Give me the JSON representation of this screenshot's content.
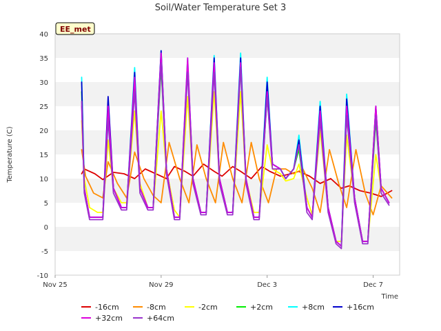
{
  "chart_data": {
    "type": "line",
    "title": "Soil/Water Temperature Set 3",
    "xlabel": "Time",
    "ylabel": "Temperature (C)",
    "badge": "EE_met",
    "ylim": [
      -10,
      40
    ],
    "yticks": [
      -10,
      -5,
      0,
      5,
      10,
      15,
      20,
      25,
      30,
      35,
      40
    ],
    "xlim": [
      0,
      13
    ],
    "xticks": [
      {
        "value": 0,
        "label": "Nov 25"
      },
      {
        "value": 4,
        "label": "Nov 29"
      },
      {
        "value": 8,
        "label": "Dec 3"
      },
      {
        "value": 12,
        "label": "Dec 7"
      }
    ],
    "x_day_units": "days since Nov 25 00:00",
    "grid": "horizontal bands",
    "legend": "bottom",
    "series": [
      {
        "name": "-16cm",
        "color": "#dd0000",
        "x": [
          1.0,
          1.1,
          1.5,
          1.8,
          2.2,
          2.6,
          3.0,
          3.4,
          3.8,
          4.2,
          4.5,
          4.9,
          5.2,
          5.6,
          6.0,
          6.3,
          6.7,
          7.0,
          7.4,
          7.8,
          8.1,
          8.5,
          8.9,
          9.2,
          9.6,
          10.0,
          10.4,
          10.8,
          11.1,
          11.5,
          11.9,
          12.3,
          12.7
        ],
        "y": [
          11,
          12,
          11,
          9.8,
          11.3,
          11,
          10,
          12,
          11,
          10,
          12.5,
          11.5,
          10.5,
          13,
          11.5,
          10.5,
          12.5,
          11.5,
          10,
          12.5,
          11.5,
          10.5,
          11,
          11.5,
          10.5,
          9,
          10,
          8,
          8.5,
          7.5,
          7,
          6.3,
          7.5
        ]
      },
      {
        "name": "-8cm",
        "color": "#ff8c00",
        "x": [
          1.0,
          1.15,
          1.45,
          1.8,
          2.0,
          2.35,
          2.7,
          3.0,
          3.35,
          3.7,
          4.0,
          4.3,
          4.7,
          5.05,
          5.35,
          5.7,
          6.05,
          6.35,
          6.7,
          7.05,
          7.4,
          7.7,
          8.05,
          8.35,
          8.7,
          9.0,
          9.35,
          9.7,
          10.0,
          10.35,
          10.7,
          11.0,
          11.35,
          11.7,
          12.0,
          12.3,
          12.7
        ],
        "y": [
          16,
          10.5,
          7,
          6,
          13.5,
          9,
          6,
          15.5,
          10,
          6.5,
          5,
          17.5,
          10,
          5,
          17,
          10,
          5,
          17.5,
          10,
          5,
          17.5,
          10,
          5,
          12,
          12,
          11,
          12,
          8,
          3,
          16,
          9,
          4,
          16,
          7,
          2.5,
          8.5,
          6
        ]
      },
      {
        "name": "-2cm",
        "color": "#ffff00",
        "x": [
          1.0,
          1.1,
          1.3,
          1.6,
          1.8,
          2.0,
          2.2,
          2.5,
          2.7,
          3.0,
          3.2,
          3.5,
          3.7,
          4.0,
          4.2,
          4.5,
          4.7,
          5.0,
          5.2,
          5.5,
          5.7,
          6.0,
          6.2,
          6.5,
          6.7,
          7.0,
          7.2,
          7.5,
          7.7,
          8.0,
          8.2,
          8.5,
          8.7,
          9.0,
          9.2,
          9.5,
          9.7,
          10.0,
          10.3,
          10.6,
          10.8,
          11.0,
          11.3,
          11.6,
          11.8,
          12.1,
          12.3,
          12.6
        ],
        "y": [
          22,
          10,
          4,
          3,
          3,
          18,
          8,
          5,
          5,
          24,
          9,
          4,
          4,
          24,
          12,
          3.5,
          2,
          27,
          10,
          3,
          3,
          28,
          10,
          3,
          3,
          28,
          10,
          3,
          3,
          17,
          12,
          11,
          9.5,
          10,
          13,
          6,
          2.5,
          20,
          4,
          -3,
          -3,
          19,
          6,
          -3,
          -3,
          15,
          8,
          5
        ]
      },
      {
        "name": "+2cm",
        "color": "#00ee00",
        "x": [
          1.0,
          1.1,
          1.3,
          1.6,
          1.8,
          2.0,
          2.2,
          2.5,
          2.7,
          3.0,
          3.2,
          3.5,
          3.7,
          4.0,
          4.2,
          4.5,
          4.7,
          5.0,
          5.2,
          5.5,
          5.7,
          6.0,
          6.2,
          6.5,
          6.7,
          7.0,
          7.2,
          7.5,
          7.7,
          8.0,
          8.2,
          8.5,
          8.7,
          9.0,
          9.2,
          9.5,
          9.7,
          10.0,
          10.3,
          10.6,
          10.8,
          11.0,
          11.3,
          11.6,
          11.8,
          12.1,
          12.3,
          12.6
        ],
        "y": [
          28,
          8,
          2,
          2,
          2,
          24,
          8,
          4,
          4,
          29,
          8,
          4,
          4,
          33,
          12,
          2,
          2,
          33,
          10,
          3,
          3,
          33,
          10,
          3,
          3,
          33,
          10,
          2,
          2,
          27,
          13,
          12,
          10,
          12,
          16,
          4,
          2,
          23,
          4,
          -3,
          -4,
          23,
          6,
          -3,
          -3,
          22,
          8,
          5
        ]
      },
      {
        "name": "+8cm",
        "color": "#00ffff",
        "x": [
          1.0,
          1.1,
          1.3,
          1.6,
          1.8,
          2.0,
          2.2,
          2.5,
          2.7,
          3.0,
          3.2,
          3.5,
          3.7,
          4.0,
          4.2,
          4.5,
          4.7,
          5.0,
          5.2,
          5.5,
          5.7,
          6.0,
          6.2,
          6.5,
          6.7,
          7.0,
          7.2,
          7.5,
          7.7,
          8.0,
          8.2,
          8.5,
          8.7,
          9.0,
          9.2,
          9.5,
          9.7,
          10.0,
          10.3,
          10.6,
          10.8,
          11.0,
          11.3,
          11.6,
          11.8,
          12.1,
          12.3,
          12.6
        ],
        "y": [
          31,
          8,
          2,
          2,
          2,
          26,
          8,
          4,
          4,
          33,
          8,
          4,
          4,
          36.5,
          12,
          2,
          2,
          35,
          10,
          3,
          3,
          35.5,
          10,
          3,
          3,
          36,
          10,
          2,
          2,
          31,
          13,
          12,
          10,
          12,
          19,
          4,
          2,
          26,
          4,
          -3,
          -4,
          27.5,
          6,
          -3,
          -3,
          24,
          8,
          5
        ]
      },
      {
        "name": "+16cm",
        "color": "#0000cc",
        "x": [
          1.0,
          1.1,
          1.3,
          1.6,
          1.8,
          2.0,
          2.2,
          2.5,
          2.7,
          3.0,
          3.2,
          3.5,
          3.7,
          4.0,
          4.2,
          4.5,
          4.7,
          5.0,
          5.2,
          5.5,
          5.7,
          6.0,
          6.2,
          6.5,
          6.7,
          7.0,
          7.2,
          7.5,
          7.7,
          8.0,
          8.2,
          8.5,
          8.7,
          9.0,
          9.2,
          9.5,
          9.7,
          10.0,
          10.3,
          10.6,
          10.8,
          11.0,
          11.3,
          11.6,
          11.8,
          12.1,
          12.3,
          12.6
        ],
        "y": [
          30,
          8,
          2,
          2,
          2,
          27,
          8,
          4,
          4,
          32,
          8,
          4,
          4,
          36.5,
          12,
          2,
          2,
          34,
          10,
          3,
          3,
          35,
          10,
          3,
          3,
          35,
          10,
          2,
          2,
          30,
          13,
          12,
          10,
          12,
          18,
          4,
          2,
          25,
          4,
          -3,
          -4,
          26.5,
          6,
          -3,
          -3,
          25,
          8,
          5
        ]
      },
      {
        "name": "+32cm",
        "color": "#dd00dd",
        "x": [
          1.0,
          1.1,
          1.3,
          1.6,
          1.8,
          2.0,
          2.2,
          2.5,
          2.7,
          3.0,
          3.2,
          3.5,
          3.7,
          4.0,
          4.2,
          4.5,
          4.7,
          5.0,
          5.2,
          5.5,
          5.7,
          6.0,
          6.2,
          6.5,
          6.7,
          7.0,
          7.2,
          7.5,
          7.7,
          8.0,
          8.2,
          8.5,
          8.7,
          9.0,
          9.2,
          9.5,
          9.7,
          10.0,
          10.3,
          10.6,
          10.8,
          11.0,
          11.3,
          11.6,
          11.8,
          12.1,
          12.3,
          12.6
        ],
        "y": [
          25,
          8,
          2,
          2,
          2,
          25,
          8,
          4,
          4,
          31,
          8,
          4,
          4,
          36,
          12,
          2,
          2,
          35,
          10,
          3,
          3,
          34,
          10,
          3,
          3,
          34,
          10,
          2,
          2,
          28,
          13,
          12,
          10,
          12,
          17,
          4,
          2,
          24,
          4,
          -3,
          -4,
          25,
          6,
          -3,
          -3,
          25,
          8,
          5
        ]
      },
      {
        "name": "+64cm",
        "color": "#9933cc",
        "x": [
          1.0,
          1.1,
          1.3,
          1.6,
          1.8,
          2.0,
          2.2,
          2.5,
          2.7,
          3.0,
          3.2,
          3.5,
          3.7,
          4.0,
          4.2,
          4.5,
          4.7,
          5.0,
          5.2,
          5.5,
          5.7,
          6.0,
          6.2,
          6.5,
          6.7,
          7.0,
          7.2,
          7.5,
          7.7,
          8.0,
          8.2,
          8.5,
          8.7,
          9.0,
          9.2,
          9.5,
          9.7,
          10.0,
          10.3,
          10.6,
          10.8,
          11.0,
          11.3,
          11.6,
          11.8,
          12.1,
          12.3,
          12.6
        ],
        "y": [
          26,
          7,
          1.5,
          1.5,
          1.5,
          22,
          7,
          3.5,
          3.5,
          28,
          7,
          3.5,
          3.5,
          34,
          11,
          1.5,
          1.5,
          32,
          9,
          2.5,
          2.5,
          32,
          9,
          2.5,
          2.5,
          33,
          9,
          1.5,
          1.5,
          27,
          12,
          12,
          10,
          12,
          17,
          3,
          1.5,
          22,
          3,
          -3.5,
          -4.5,
          23,
          5,
          -3.5,
          -3.5,
          23,
          7,
          4.5
        ]
      }
    ]
  }
}
